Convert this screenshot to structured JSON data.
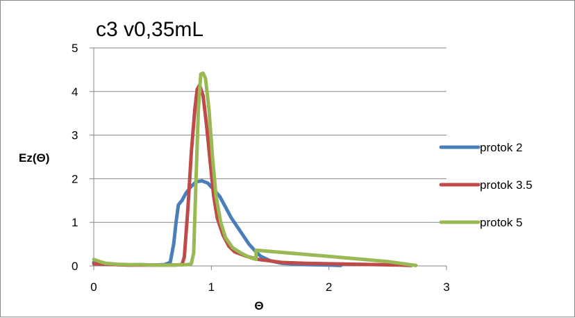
{
  "chart_data": {
    "type": "line",
    "title": "c3 v0,35mL",
    "xlabel": "Θ",
    "ylabel": "Ez(Θ)",
    "xlim": [
      0,
      3
    ],
    "ylim": [
      0,
      5
    ],
    "x_ticks": [
      "0",
      "1",
      "2",
      "3"
    ],
    "y_ticks": [
      "0",
      "1",
      "2",
      "3",
      "4",
      "5"
    ],
    "grid": "horizontal",
    "legend_position": "right",
    "series": [
      {
        "name": "protok 2",
        "color": "#4a7ebb",
        "points": [
          [
            0,
            0.08
          ],
          [
            0.1,
            0.05
          ],
          [
            0.2,
            0.03
          ],
          [
            0.3,
            0.02
          ],
          [
            0.4,
            0.03
          ],
          [
            0.5,
            0.02
          ],
          [
            0.6,
            0.03
          ],
          [
            0.65,
            0.08
          ],
          [
            0.68,
            0.5
          ],
          [
            0.7,
            1.0
          ],
          [
            0.72,
            1.4
          ],
          [
            0.75,
            1.5
          ],
          [
            0.78,
            1.65
          ],
          [
            0.82,
            1.8
          ],
          [
            0.87,
            1.93
          ],
          [
            0.92,
            1.95
          ],
          [
            0.97,
            1.9
          ],
          [
            1.02,
            1.75
          ],
          [
            1.07,
            1.6
          ],
          [
            1.12,
            1.35
          ],
          [
            1.17,
            1.1
          ],
          [
            1.22,
            0.9
          ],
          [
            1.27,
            0.7
          ],
          [
            1.32,
            0.5
          ],
          [
            1.37,
            0.35
          ],
          [
            1.42,
            0.22
          ],
          [
            1.5,
            0.12
          ],
          [
            1.6,
            0.06
          ],
          [
            1.8,
            0.03
          ],
          [
            2.0,
            0.02
          ],
          [
            2.1,
            0.01
          ]
        ]
      },
      {
        "name": "protok 3.5",
        "color": "#be4b48",
        "points": [
          [
            0,
            0.05
          ],
          [
            0.1,
            0.04
          ],
          [
            0.2,
            0.03
          ],
          [
            0.3,
            0.02
          ],
          [
            0.4,
            0.02
          ],
          [
            0.5,
            0.02
          ],
          [
            0.6,
            0.02
          ],
          [
            0.7,
            0.02
          ],
          [
            0.75,
            0.03
          ],
          [
            0.77,
            0.2
          ],
          [
            0.8,
            1.3
          ],
          [
            0.83,
            2.6
          ],
          [
            0.86,
            3.6
          ],
          [
            0.88,
            4.05
          ],
          [
            0.9,
            4.15
          ],
          [
            0.93,
            3.9
          ],
          [
            0.96,
            3.2
          ],
          [
            0.99,
            2.4
          ],
          [
            1.02,
            1.6
          ],
          [
            1.05,
            1.1
          ],
          [
            1.1,
            0.7
          ],
          [
            1.15,
            0.45
          ],
          [
            1.2,
            0.32
          ],
          [
            1.3,
            0.22
          ],
          [
            1.4,
            0.15
          ],
          [
            1.6,
            0.08
          ],
          [
            1.8,
            0.06
          ],
          [
            2.0,
            0.05
          ],
          [
            2.2,
            0.04
          ],
          [
            2.4,
            0.03
          ],
          [
            2.6,
            0.02
          ],
          [
            2.7,
            0.01
          ]
        ]
      },
      {
        "name": "protok 5",
        "color": "#98b954",
        "points": [
          [
            0,
            0.15
          ],
          [
            0.05,
            0.1
          ],
          [
            0.1,
            0.06
          ],
          [
            0.2,
            0.04
          ],
          [
            0.3,
            0.03
          ],
          [
            0.4,
            0.03
          ],
          [
            0.5,
            0.02
          ],
          [
            0.6,
            0.02
          ],
          [
            0.7,
            0.02
          ],
          [
            0.8,
            0.03
          ],
          [
            0.83,
            0.05
          ],
          [
            0.85,
            0.3
          ],
          [
            0.87,
            2.0
          ],
          [
            0.89,
            3.6
          ],
          [
            0.91,
            4.4
          ],
          [
            0.93,
            4.42
          ],
          [
            0.95,
            4.3
          ],
          [
            0.98,
            3.6
          ],
          [
            1.01,
            2.5
          ],
          [
            1.04,
            1.6
          ],
          [
            1.08,
            1.0
          ],
          [
            1.12,
            0.65
          ],
          [
            1.18,
            0.42
          ],
          [
            1.25,
            0.3
          ],
          [
            1.32,
            0.2
          ],
          [
            1.38,
            0.15
          ],
          [
            1.38,
            0.36
          ],
          [
            2.0,
            0.22
          ],
          [
            2.5,
            0.1
          ],
          [
            2.74,
            0.01
          ]
        ]
      }
    ]
  }
}
